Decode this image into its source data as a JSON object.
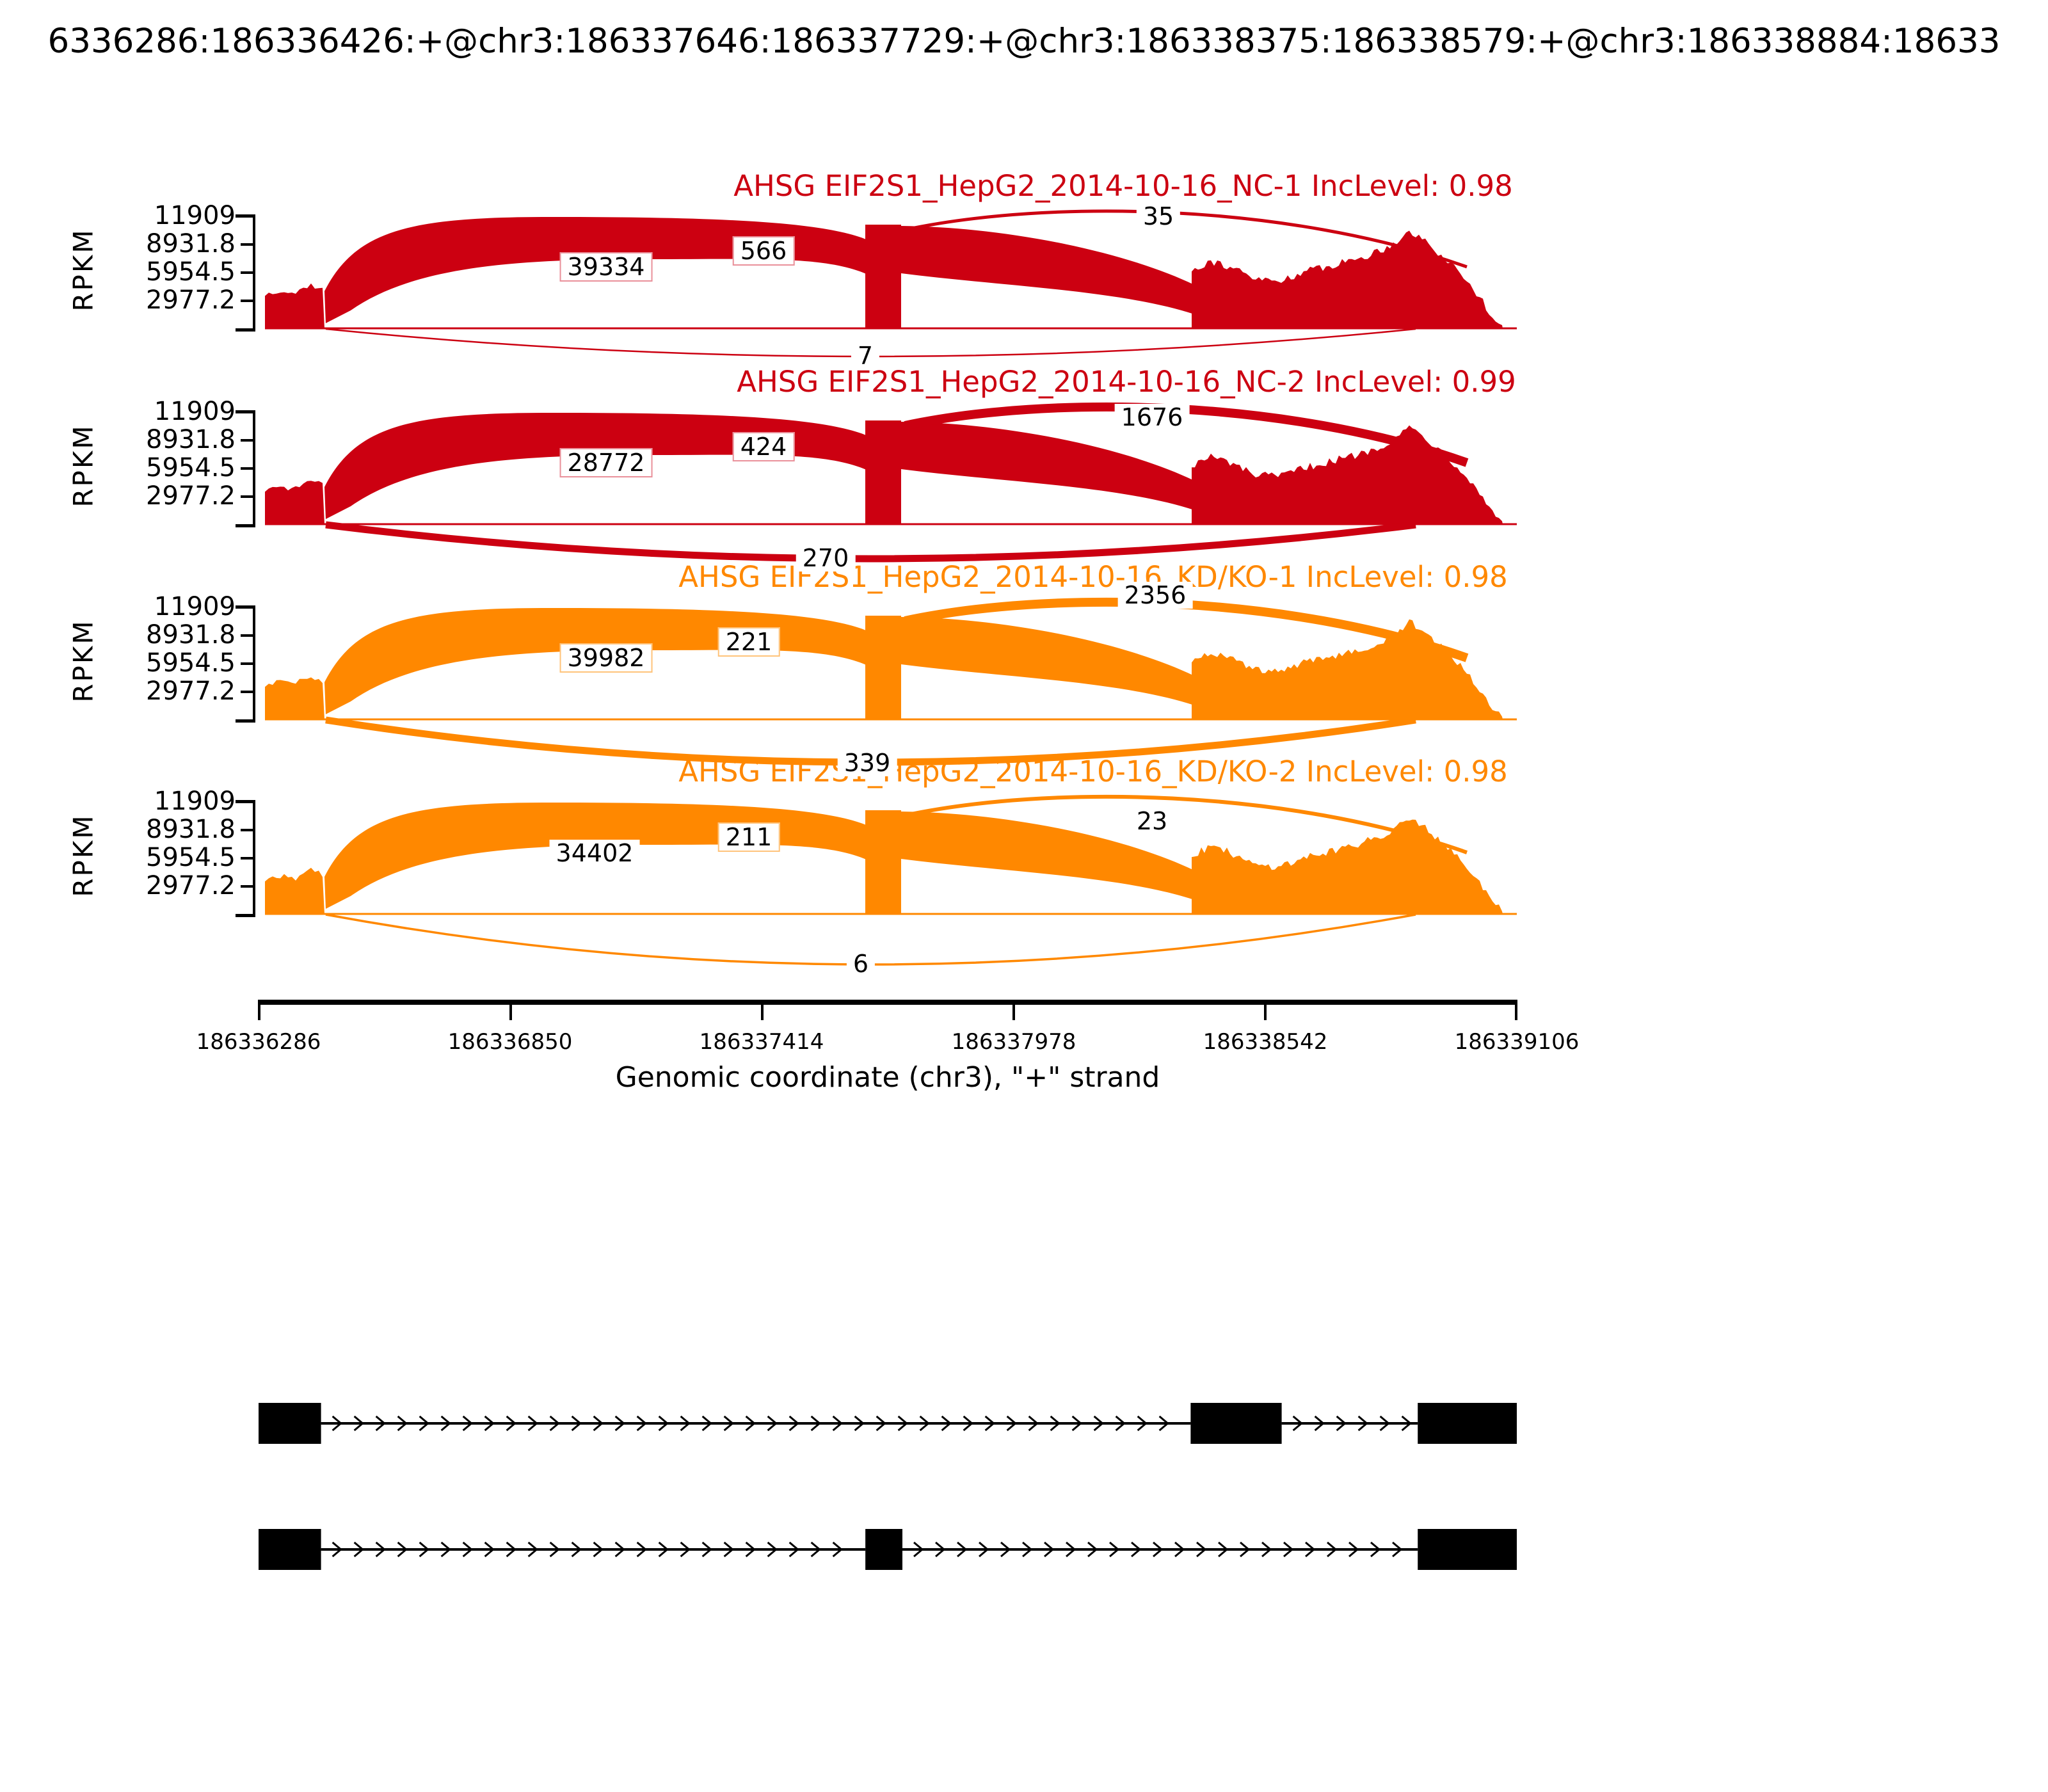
{
  "figure_title": "6336286:186336426:+@chr3:186337646:186337729:+@chr3:186338375:186338579:+@chr3:186338884:18633",
  "colors": {
    "control_red": "#CC0011",
    "knockdown_orange": "#FF8800"
  },
  "y_axis": {
    "label": "RPKM",
    "tick_labels": [
      "11909",
      "8931.8",
      "5954.5",
      "2977.2"
    ]
  },
  "x_axis": {
    "tick_labels": [
      "186336286",
      "186336850",
      "186337414",
      "186337978",
      "186338542",
      "186339106"
    ],
    "label": "Genomic coordinate (chr3), \"+\" strand"
  },
  "tracks": [
    {
      "title": "AHSG EIF2S1_HepG2_2014-10-16_NC-1 IncLevel: 0.98",
      "color": "#CC0011",
      "junction_labels": {
        "j1": "39334",
        "j2": "566",
        "j3": "35",
        "j4": "7"
      }
    },
    {
      "title": "AHSG EIF2S1_HepG2_2014-10-16_NC-2 IncLevel: 0.99",
      "color": "#CC0011",
      "junction_labels": {
        "j1": "28772",
        "j2": "424",
        "j3": "1676",
        "j4": "270"
      }
    },
    {
      "title": "AHSG EIF2S1_HepG2_2014-10-16_KD/KO-1 IncLevel: 0.98",
      "color": "#FF8800",
      "junction_labels": {
        "j1": "39982",
        "j2": "221",
        "j3": "2356",
        "j4": "339"
      }
    },
    {
      "title": "AHSG EIF2S1_HepG2_2014-10-16_KD/KO-2 IncLevel: 0.98",
      "color": "#FF8800",
      "junction_labels": {
        "j1": "34402",
        "j2": "211",
        "j3": "23",
        "j4": "6"
      }
    }
  ],
  "chart_data": {
    "type": "area",
    "subtype": "sashimi-plot",
    "title": "6336286:186336426:+@chr3:186337646:186337729:+@chr3:186338375:186338579:+@chr3:186338884:18633",
    "xlabel": "Genomic coordinate (chr3), \"+\" strand",
    "ylabel": "RPKM",
    "x_range": [
      186336286,
      186339106
    ],
    "x_ticks": [
      186336286,
      186336850,
      186337414,
      186337978,
      186338542,
      186339106
    ],
    "y_ticks": [
      2977.2,
      5954.5,
      8931.8,
      11909
    ],
    "y_max": 11909,
    "grid": false,
    "tracks": [
      {
        "name": "AHSG EIF2S1_HepG2_2014-10-16_NC-1",
        "inc_level": 0.98,
        "color": "#CC0011",
        "junction_reads": [
          39334,
          566,
          35,
          7
        ]
      },
      {
        "name": "AHSG EIF2S1_HepG2_2014-10-16_NC-2",
        "inc_level": 0.99,
        "color": "#CC0011",
        "junction_reads": [
          28772,
          424,
          1676,
          270
        ]
      },
      {
        "name": "AHSG EIF2S1_HepG2_2014-10-16_KD/KO-1",
        "inc_level": 0.98,
        "color": "#FF8800",
        "junction_reads": [
          39982,
          221,
          2356,
          339
        ]
      },
      {
        "name": "AHSG EIF2S1_HepG2_2014-10-16_KD/KO-2",
        "inc_level": 0.98,
        "color": "#FF8800",
        "junction_reads": [
          34402,
          211,
          23,
          6
        ]
      }
    ],
    "isoforms": [
      {
        "exons": [
          [
            186336286,
            186336426
          ],
          [
            186338375,
            186338579
          ],
          [
            186338884,
            186339106
          ]
        ]
      },
      {
        "exons": [
          [
            186336286,
            186336426
          ],
          [
            186337646,
            186337729
          ],
          [
            186338884,
            186339106
          ]
        ]
      }
    ],
    "strand": "+",
    "chromosome": "chr3"
  }
}
